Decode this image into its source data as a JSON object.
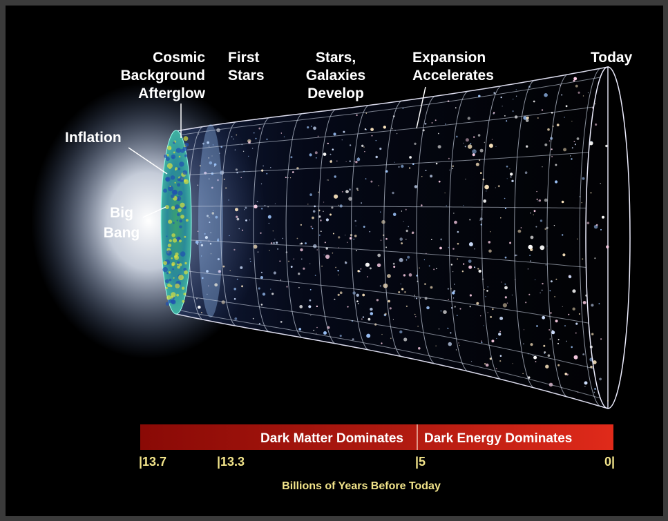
{
  "labels": {
    "cosmic_background_afterglow": [
      "Cosmic",
      "Background",
      "Afterglow"
    ],
    "first_stars": [
      "First",
      "Stars"
    ],
    "stars_galaxies_develop": [
      "Stars,",
      "Galaxies",
      "Develop"
    ],
    "expansion_accelerates": [
      "Expansion",
      "Accelerates"
    ],
    "today": "Today",
    "inflation": "Inflation",
    "big_bang": [
      "Big",
      "Bang"
    ]
  },
  "timeline": {
    "eras": [
      "Dark Matter Dominates",
      "Dark Energy Dominates"
    ],
    "ticks": [
      "|13.7",
      "|13.3",
      "|5",
      "0|"
    ],
    "axis_label": "Billions of Years Before Today"
  }
}
